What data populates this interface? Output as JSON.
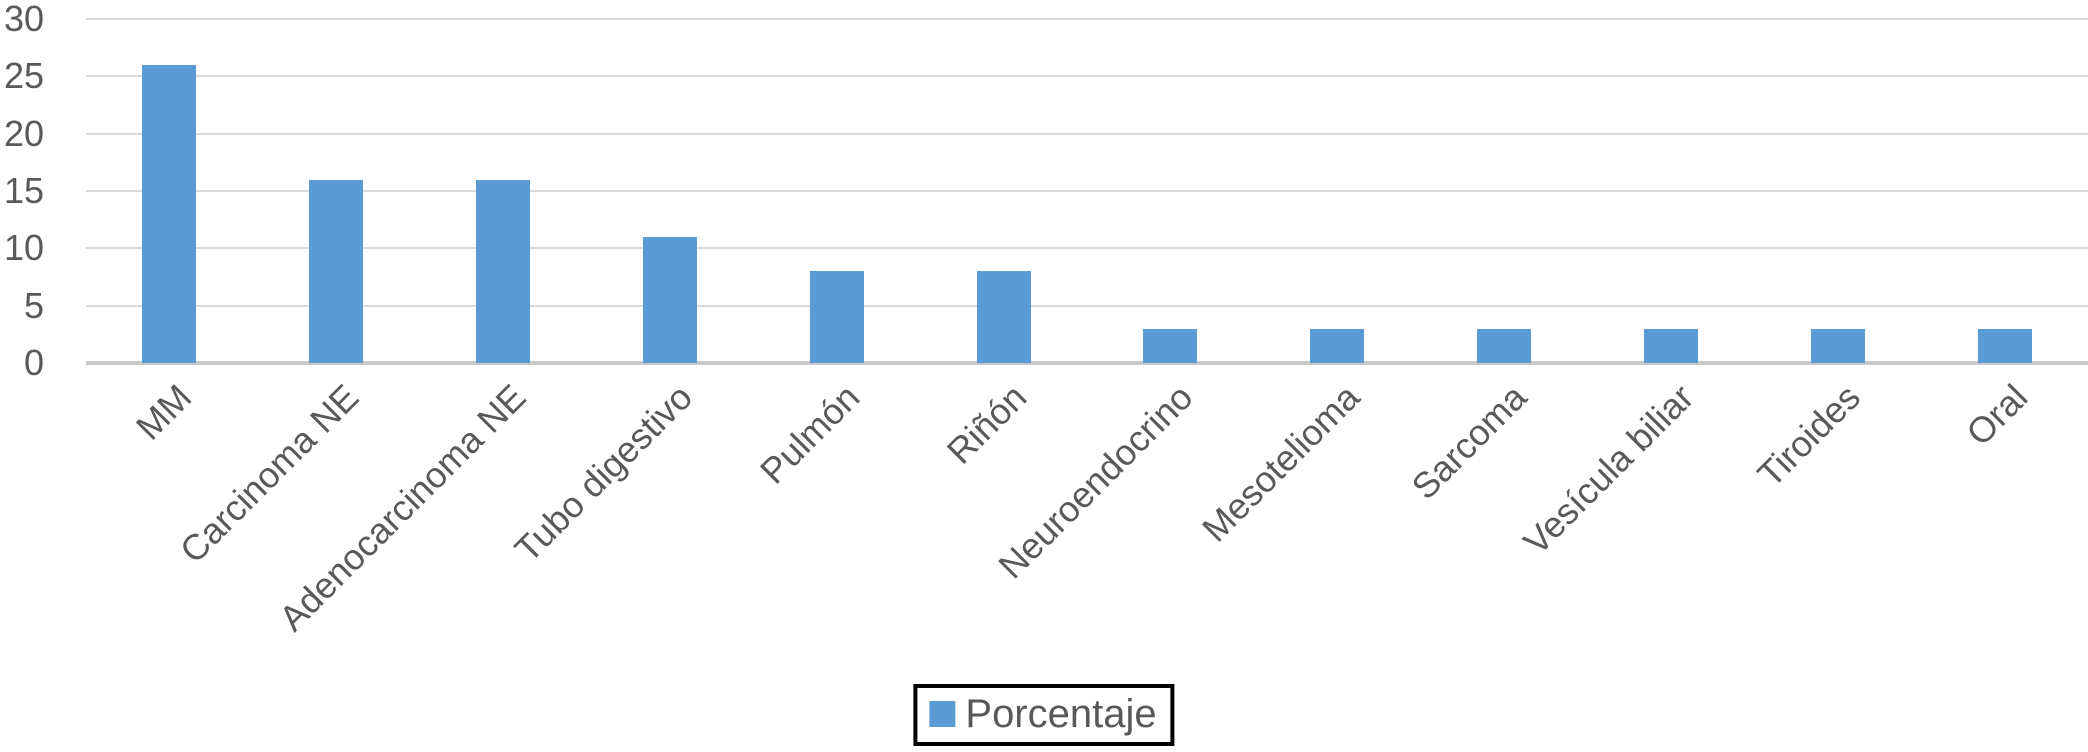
{
  "chart_data": {
    "type": "bar",
    "categories": [
      "MM",
      "Carcinoma NE",
      "Adenocarcinoma NE",
      "Tubo digestivo",
      "Pulmón",
      "Riñón",
      "Neuroendocrino",
      "Mesotelioma",
      "Sarcoma",
      "Vesícula biliar",
      "Tiroides",
      "Oral"
    ],
    "values": [
      26,
      16,
      16,
      11,
      8,
      8,
      3,
      3,
      3,
      3,
      3,
      3
    ],
    "series_name": "Porcentaje",
    "yticks": [
      0,
      5,
      10,
      15,
      20,
      25,
      30
    ],
    "ylim": [
      0,
      30
    ],
    "grid": true,
    "legend_position": "bottom-center",
    "colors": {
      "bar": "#5B9BD5",
      "gridline": "#D9D9D9",
      "axis_line": "#C9C9C9",
      "text": "#595959",
      "legend_border": "#000000",
      "background": "#FFFFFF"
    }
  },
  "legend": {
    "label": "Porcentaje"
  }
}
